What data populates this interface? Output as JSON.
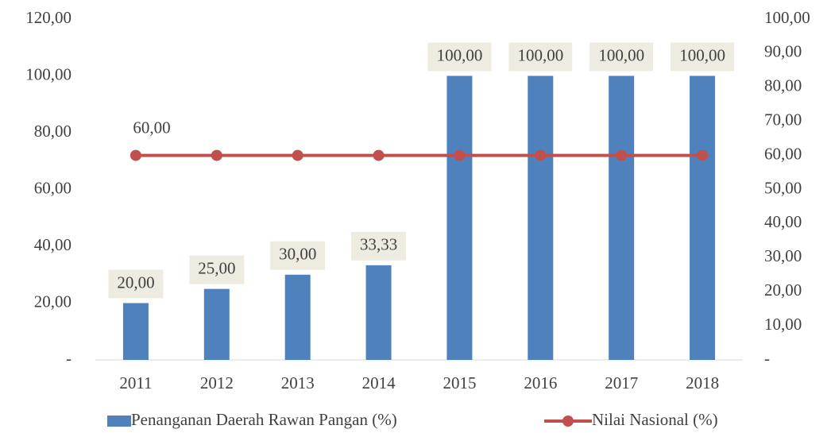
{
  "chart_data": {
    "type": "bar",
    "categories": [
      "2011",
      "2012",
      "2013",
      "2014",
      "2015",
      "2016",
      "2017",
      "2018"
    ],
    "series": [
      {
        "name": "Penanganan Daerah Rawan Pangan (%)",
        "type": "bar",
        "color": "#4f81bd",
        "values": [
          20,
          25,
          30,
          33.33,
          100,
          100,
          100,
          100
        ],
        "value_labels": [
          "20,00",
          "25,00",
          "30,00",
          "33,33",
          "100,00",
          "100,00",
          "100,00",
          "100,00"
        ]
      },
      {
        "name": "Nilai Nasional (%)",
        "type": "line",
        "axis": "y2",
        "color": "#c0504d",
        "values": [
          60,
          60,
          60,
          60,
          60,
          60,
          60,
          60
        ],
        "value_labels": [
          "60,00",
          null,
          null,
          null,
          null,
          null,
          null,
          null
        ]
      }
    ],
    "ylim": [
      0,
      120
    ],
    "yticks": [
      {
        "value": 0,
        "label": "-"
      },
      {
        "value": 20,
        "label": "20,00"
      },
      {
        "value": 40,
        "label": "40,00"
      },
      {
        "value": 60,
        "label": "60,00"
      },
      {
        "value": 80,
        "label": "80,00"
      },
      {
        "value": 100,
        "label": "100,00"
      },
      {
        "value": 120,
        "label": "120,00"
      }
    ],
    "y2lim": [
      0,
      100
    ],
    "y2ticks": [
      {
        "value": 0,
        "label": "-"
      },
      {
        "value": 10,
        "label": "10,00"
      },
      {
        "value": 20,
        "label": "20,00"
      },
      {
        "value": 30,
        "label": "30,00"
      },
      {
        "value": 40,
        "label": "40,00"
      },
      {
        "value": 50,
        "label": "50,00"
      },
      {
        "value": 60,
        "label": "60,00"
      },
      {
        "value": 70,
        "label": "70,00"
      },
      {
        "value": 80,
        "label": "80,00"
      },
      {
        "value": 90,
        "label": "90,00"
      },
      {
        "value": 100,
        "label": "100,00"
      }
    ],
    "legend": "bottom"
  }
}
